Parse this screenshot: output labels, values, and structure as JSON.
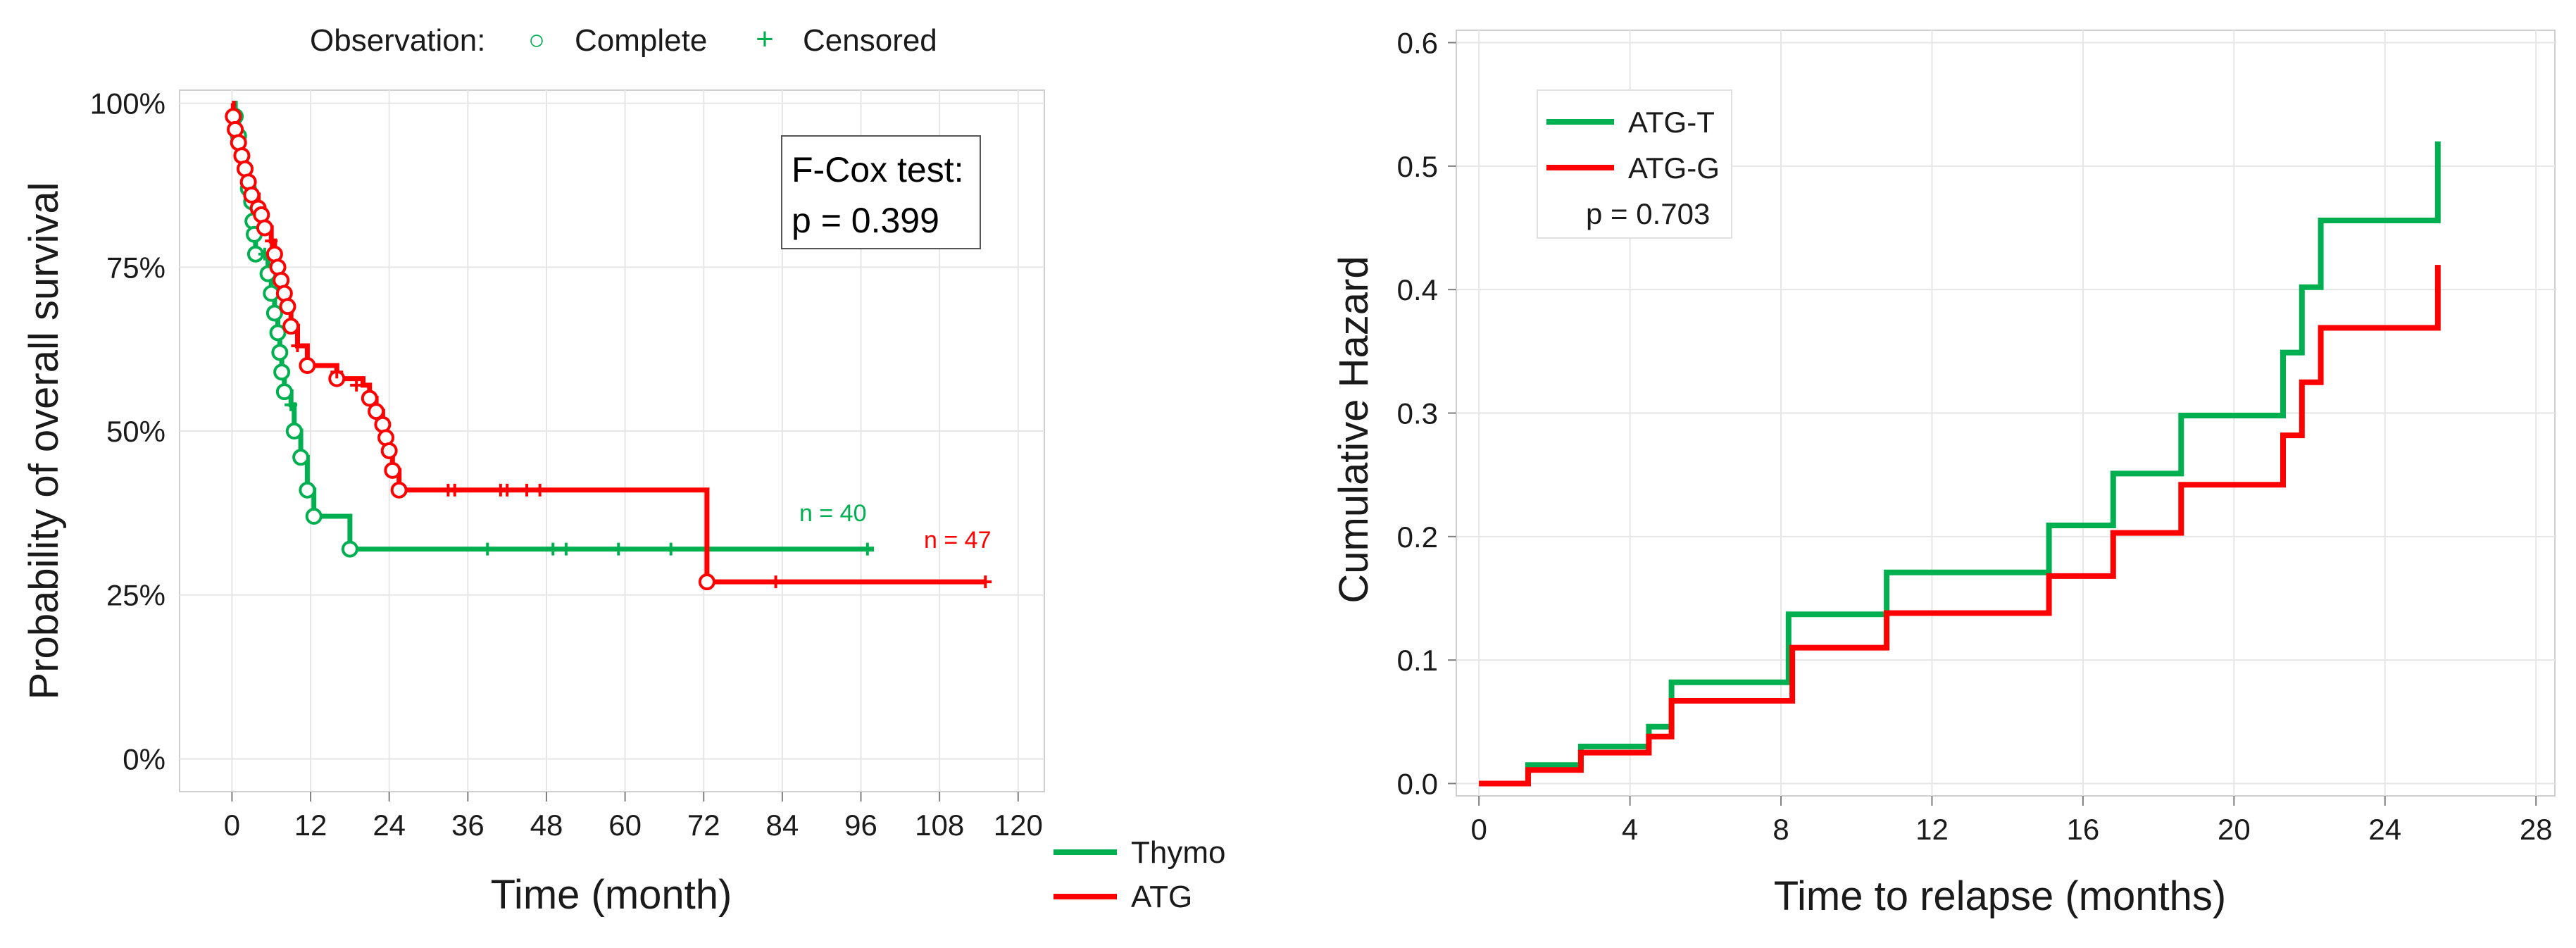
{
  "colors": {
    "green": "#00b050",
    "red": "#ff0000",
    "axis": "#7f7f7f",
    "grid": "#e6e6e6",
    "text": "#1a1a1a"
  },
  "chart_data": [
    {
      "type": "line",
      "subtype": "kaplan-meier",
      "observation_legend": {
        "label": "Observation:",
        "complete": "Complete",
        "censored": "Censored",
        "complete_symbol": "○",
        "censored_symbol": "+"
      },
      "test_box": {
        "line1": "F-Cox test:",
        "line2": "p = 0.399"
      },
      "xlabel": "Time (month)",
      "ylabel": "Probability of overall survival",
      "xlim": [
        -8,
        124
      ],
      "ylim": [
        -5,
        102
      ],
      "x_ticks": [
        0,
        12,
        24,
        36,
        48,
        60,
        72,
        84,
        96,
        108,
        120
      ],
      "x_tick_labels": [
        "0",
        "12",
        "24",
        "36",
        "48",
        "60",
        "72",
        "84",
        "96",
        "108",
        "120"
      ],
      "y_ticks": [
        0,
        25,
        50,
        75,
        100
      ],
      "y_tick_labels": [
        "0%",
        "25%",
        "50%",
        "75%",
        "100%"
      ],
      "legend": {
        "placement": "bottom-right outside",
        "entries": [
          "Thymo",
          "ATG"
        ]
      },
      "series": [
        {
          "name": "Thymo",
          "color_key": "green",
          "n_label": "n = 40",
          "steps": [
            [
              0,
              100
            ],
            [
              0.5,
              98
            ],
            [
              1,
              95
            ],
            [
              1.5,
              92
            ],
            [
              2,
              90
            ],
            [
              2.5,
              87
            ],
            [
              3,
              85
            ],
            [
              3.2,
              82
            ],
            [
              3.4,
              80
            ],
            [
              3.6,
              77
            ],
            [
              5,
              77
            ],
            [
              5.5,
              74
            ],
            [
              6,
              71
            ],
            [
              6.5,
              68
            ],
            [
              7,
              65
            ],
            [
              7.3,
              62
            ],
            [
              7.6,
              59
            ],
            [
              8,
              56
            ],
            [
              9,
              54
            ],
            [
              9.5,
              50
            ],
            [
              10.5,
              46
            ],
            [
              11.5,
              41
            ],
            [
              12.5,
              37
            ],
            [
              18,
              32
            ],
            [
              98,
              32
            ]
          ],
          "complete_events": [
            [
              0.5,
              98
            ],
            [
              1,
              95
            ],
            [
              1.5,
              92
            ],
            [
              2,
              90
            ],
            [
              2.5,
              87
            ],
            [
              3,
              85
            ],
            [
              3.2,
              82
            ],
            [
              3.4,
              80
            ],
            [
              3.6,
              77
            ],
            [
              5.5,
              74
            ],
            [
              6,
              71
            ],
            [
              6.5,
              68
            ],
            [
              7,
              65
            ],
            [
              7.3,
              62
            ],
            [
              7.6,
              59
            ],
            [
              8,
              56
            ],
            [
              9.5,
              50
            ],
            [
              10.5,
              46
            ],
            [
              11.5,
              41
            ],
            [
              12.5,
              37
            ],
            [
              18,
              32
            ]
          ],
          "censored": [
            [
              5,
              77
            ],
            [
              9,
              54
            ],
            [
              39,
              32
            ],
            [
              49,
              32
            ],
            [
              51,
              32
            ],
            [
              59,
              32
            ],
            [
              67,
              32
            ],
            [
              97,
              32
            ]
          ]
        },
        {
          "name": "ATG",
          "color_key": "red",
          "n_label": "n = 47",
          "steps": [
            [
              0,
              100
            ],
            [
              0.2,
              98
            ],
            [
              0.5,
              96
            ],
            [
              1,
              94
            ],
            [
              1.5,
              92
            ],
            [
              2,
              90
            ],
            [
              2.5,
              88
            ],
            [
              3,
              86
            ],
            [
              4,
              84
            ],
            [
              4.5,
              83
            ],
            [
              5,
              81
            ],
            [
              6,
              79
            ],
            [
              6.5,
              77
            ],
            [
              7,
              75
            ],
            [
              7.5,
              73
            ],
            [
              8,
              71
            ],
            [
              8.5,
              69
            ],
            [
              9,
              66
            ],
            [
              10,
              63
            ],
            [
              11.5,
              60
            ],
            [
              16,
              58
            ],
            [
              20,
              57
            ],
            [
              21,
              55
            ],
            [
              22,
              53
            ],
            [
              23,
              51
            ],
            [
              23.5,
              49
            ],
            [
              24,
              47
            ],
            [
              24.5,
              44
            ],
            [
              25.5,
              41
            ],
            [
              72,
              41
            ],
            [
              72.5,
              27
            ],
            [
              115,
              27
            ]
          ],
          "complete_events": [
            [
              0.2,
              98
            ],
            [
              0.5,
              96
            ],
            [
              1,
              94
            ],
            [
              1.5,
              92
            ],
            [
              2,
              90
            ],
            [
              2.5,
              88
            ],
            [
              3,
              86
            ],
            [
              4,
              84
            ],
            [
              4.5,
              83
            ],
            [
              5,
              81
            ],
            [
              6.5,
              77
            ],
            [
              7,
              75
            ],
            [
              7.5,
              73
            ],
            [
              8,
              71
            ],
            [
              8.5,
              69
            ],
            [
              9,
              66
            ],
            [
              11.5,
              60
            ],
            [
              16,
              58
            ],
            [
              21,
              55
            ],
            [
              22,
              53
            ],
            [
              23,
              51
            ],
            [
              23.5,
              49
            ],
            [
              24,
              47
            ],
            [
              24.5,
              44
            ],
            [
              25.5,
              41
            ],
            [
              72.5,
              27
            ]
          ],
          "censored": [
            [
              6,
              79
            ],
            [
              10,
              63
            ],
            [
              16,
              59
            ],
            [
              19,
              57
            ],
            [
              33,
              41
            ],
            [
              34,
              41
            ],
            [
              41,
              41
            ],
            [
              42,
              41
            ],
            [
              45,
              41
            ],
            [
              47,
              41
            ],
            [
              83,
              27
            ],
            [
              115,
              27
            ]
          ]
        }
      ]
    },
    {
      "type": "line",
      "subtype": "cumulative-hazard",
      "xlabel": "Time to relapse (months)",
      "ylabel": "Cumulative Hazard",
      "xlim": [
        -0.6,
        28.5
      ],
      "ylim": [
        -0.01,
        0.61
      ],
      "x_ticks": [
        0,
        4,
        8,
        12,
        16,
        20,
        24,
        28
      ],
      "x_tick_labels": [
        "0",
        "4",
        "8",
        "12",
        "16",
        "20",
        "24",
        "28"
      ],
      "y_ticks": [
        0.0,
        0.1,
        0.2,
        0.3,
        0.4,
        0.5,
        0.6
      ],
      "y_tick_labels": [
        "0.0",
        "0.1",
        "0.2",
        "0.3",
        "0.4",
        "0.5",
        "0.6"
      ],
      "legend": {
        "placement": "top-left",
        "entries": [
          "ATG-T",
          "ATG-G"
        ],
        "note": "p = 0.703"
      },
      "series": [
        {
          "name": "ATG-T",
          "color_key": "green",
          "steps": [
            [
              0,
              0
            ],
            [
              1.3,
              0.015
            ],
            [
              2.7,
              0.03
            ],
            [
              4.5,
              0.046
            ],
            [
              5.1,
              0.082
            ],
            [
              8.2,
              0.137
            ],
            [
              10.8,
              0.171
            ],
            [
              15.1,
              0.209
            ],
            [
              16.8,
              0.251
            ],
            [
              18.6,
              0.298
            ],
            [
              21.3,
              0.349
            ],
            [
              21.8,
              0.402
            ],
            [
              22.3,
              0.456
            ],
            [
              25.4,
              0.456
            ],
            [
              25.4,
              0.52
            ]
          ]
        },
        {
          "name": "ATG-G",
          "color_key": "red",
          "steps": [
            [
              0,
              0
            ],
            [
              1.3,
              0.011
            ],
            [
              2.7,
              0.025
            ],
            [
              4.5,
              0.038
            ],
            [
              5.1,
              0.067
            ],
            [
              8.3,
              0.11
            ],
            [
              10.8,
              0.138
            ],
            [
              15.1,
              0.168
            ],
            [
              16.8,
              0.203
            ],
            [
              18.6,
              0.242
            ],
            [
              21.3,
              0.282
            ],
            [
              21.8,
              0.325
            ],
            [
              22.3,
              0.369
            ],
            [
              25.4,
              0.369
            ],
            [
              25.4,
              0.42
            ]
          ]
        }
      ]
    }
  ]
}
